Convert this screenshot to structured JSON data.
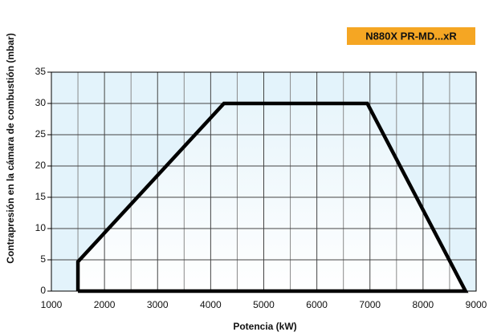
{
  "chart_data": {
    "type": "line",
    "title": "N880X PR-MD...xR",
    "x_label": "Potencia (kW)",
    "y_label": "Contrapresión en la cámara de combustión (mbar)",
    "x": [
      1500,
      1500,
      4250,
      6950,
      8800,
      1500
    ],
    "series": [
      {
        "color": "#000000",
        "values": [
          0,
          4.7,
          30,
          30,
          0,
          0
        ]
      }
    ],
    "xlim": [
      1000,
      9000
    ],
    "xticks": [
      1000,
      2000,
      3000,
      4000,
      5000,
      6000,
      7000,
      8000,
      9000
    ],
    "xminorticks": [
      1500,
      2500,
      3500,
      4500,
      5500,
      6500,
      7500,
      8500
    ],
    "ylim": [
      0,
      35
    ],
    "yticks": [
      0,
      5,
      10,
      15,
      20,
      25,
      30,
      35
    ],
    "grid": true,
    "title_color": "#f5a623",
    "background_color": "#e3f3fb"
  }
}
